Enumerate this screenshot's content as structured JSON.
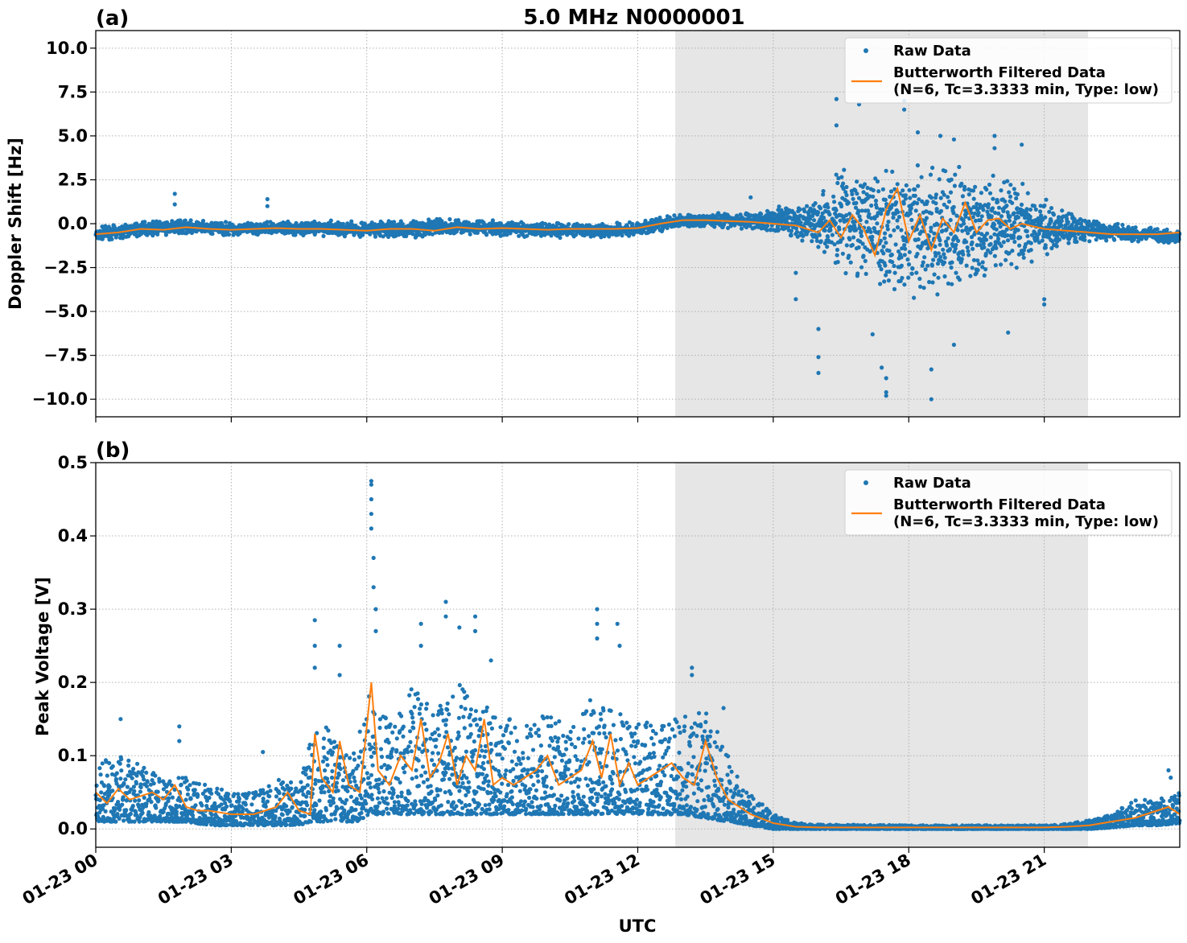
{
  "figure": {
    "title": "5.0 MHz N0000001"
  },
  "chart_data": [
    {
      "type": "scatter",
      "panel_label": "(a)",
      "title": "5.0 MHz N0000001",
      "xlabel": "",
      "ylabel": "Doppler Shift [Hz]",
      "xlim": [
        "01-23 00:00",
        "01-23 24:00"
      ],
      "ylim": [
        -11,
        11
      ],
      "x_ticks": [
        "01-23 00",
        "01-23 03",
        "01-23 06",
        "01-23 09",
        "01-23 12",
        "01-23 15",
        "01-23 18",
        "01-23 21"
      ],
      "y_ticks": [
        "−10.0",
        "−7.5",
        "−5.0",
        "−2.5",
        "0.0",
        "2.5",
        "5.0",
        "7.5",
        "10.0"
      ],
      "grid": true,
      "legend_position": "top-right",
      "shaded_interval_hours": [
        12.83,
        21.97
      ],
      "series": [
        {
          "name": "Raw Data",
          "color": "#1f77b4",
          "envelope_hours": [
            0,
            1,
            2,
            3,
            4,
            5,
            6,
            7,
            8,
            9,
            10,
            11,
            12,
            12.8,
            13.5,
            14.5,
            15,
            15.5,
            16,
            16.5,
            17,
            17.5,
            18,
            18.5,
            19,
            19.5,
            20,
            20.5,
            21,
            21.5,
            22,
            23,
            24
          ],
          "envelope_upper": [
            -0.2,
            0.1,
            0.2,
            0.1,
            0.1,
            0.2,
            0.1,
            0.2,
            0.3,
            0.2,
            0.1,
            0.0,
            0.1,
            0.5,
            0.6,
            0.6,
            0.9,
            1.2,
            2.0,
            3.0,
            3.5,
            3.8,
            3.5,
            3.5,
            3.3,
            3.0,
            2.8,
            2.3,
            1.5,
            0.6,
            0.3,
            -0.2,
            -0.3
          ],
          "envelope_lower": [
            -1.0,
            -0.7,
            -0.6,
            -0.7,
            -0.6,
            -0.7,
            -0.8,
            -0.8,
            -0.6,
            -0.7,
            -0.8,
            -0.8,
            -0.7,
            -0.3,
            -0.2,
            -0.3,
            -0.5,
            -0.8,
            -1.5,
            -3.0,
            -3.8,
            -4.0,
            -4.2,
            -4.3,
            -4.0,
            -3.5,
            -3.0,
            -2.5,
            -2.0,
            -1.2,
            -1.0,
            -1.0,
            -1.1
          ],
          "outliers": [
            [
              1.75,
              1.7
            ],
            [
              1.75,
              1.1
            ],
            [
              3.8,
              1.4
            ],
            [
              3.8,
              1.0
            ],
            [
              14.5,
              1.5
            ],
            [
              15.5,
              -2.8
            ],
            [
              15.5,
              -4.3
            ],
            [
              16.0,
              -6.0
            ],
            [
              16.0,
              -7.6
            ],
            [
              16.0,
              -8.5
            ],
            [
              16.4,
              7.1
            ],
            [
              16.4,
              5.6
            ],
            [
              16.9,
              6.8
            ],
            [
              17.2,
              -6.3
            ],
            [
              17.4,
              -8.2
            ],
            [
              17.5,
              -8.8
            ],
            [
              17.5,
              -9.6
            ],
            [
              17.5,
              -9.8
            ],
            [
              17.9,
              7.0
            ],
            [
              17.9,
              6.5
            ],
            [
              18.2,
              5.2
            ],
            [
              18.5,
              -10.0
            ],
            [
              18.5,
              -8.3
            ],
            [
              18.7,
              5.0
            ],
            [
              19.0,
              4.8
            ],
            [
              19.0,
              -6.9
            ],
            [
              19.9,
              5.0
            ],
            [
              19.9,
              4.3
            ],
            [
              20.2,
              -6.2
            ],
            [
              20.5,
              4.5
            ],
            [
              21.0,
              -4.3
            ],
            [
              21.0,
              -4.6
            ]
          ]
        },
        {
          "name": "Butterworth Filtered Data\n(N=6, Tc=3.3333 min, Type: low)",
          "color": "#ff7f0e",
          "x_hours": [
            0,
            0.5,
            1,
            1.5,
            2,
            2.5,
            3,
            3.5,
            4,
            4.5,
            5,
            5.5,
            6,
            6.5,
            7,
            7.5,
            8,
            8.5,
            9,
            9.5,
            10,
            10.5,
            11,
            11.5,
            12,
            12.5,
            13,
            13.5,
            14,
            14.5,
            15,
            15.5,
            16,
            16.25,
            16.5,
            16.75,
            17,
            17.25,
            17.5,
            17.75,
            18,
            18.25,
            18.5,
            18.75,
            19,
            19.25,
            19.5,
            19.75,
            20,
            20.25,
            20.5,
            21,
            21.5,
            22,
            22.5,
            23,
            23.5,
            24
          ],
          "y": [
            -0.6,
            -0.5,
            -0.3,
            -0.35,
            -0.2,
            -0.3,
            -0.35,
            -0.3,
            -0.25,
            -0.3,
            -0.3,
            -0.35,
            -0.4,
            -0.3,
            -0.3,
            -0.4,
            -0.2,
            -0.3,
            -0.25,
            -0.3,
            -0.35,
            -0.3,
            -0.3,
            -0.3,
            -0.25,
            0.0,
            0.2,
            0.2,
            0.15,
            0.1,
            0.0,
            -0.1,
            -0.5,
            0.2,
            -0.8,
            0.5,
            -0.3,
            -1.8,
            0.8,
            2.0,
            -1.0,
            0.5,
            -1.5,
            0.3,
            -0.5,
            1.2,
            -0.5,
            0.2,
            0.3,
            -0.3,
            0.0,
            -0.3,
            -0.4,
            -0.5,
            -0.6,
            -0.6,
            -0.6,
            -0.5
          ]
        }
      ],
      "legend": {
        "raw_label": "Raw Data",
        "filtered_label_line1": "Butterworth Filtered Data",
        "filtered_label_line2": "(N=6, Tc=3.3333 min, Type: low)"
      }
    },
    {
      "type": "scatter",
      "panel_label": "(b)",
      "title": "",
      "xlabel": "UTC",
      "ylabel": "Peak Voltage [V]",
      "xlim": [
        "01-23 00:00",
        "01-23 24:00"
      ],
      "ylim": [
        -0.025,
        0.5
      ],
      "x_ticks": [
        "01-23 00",
        "01-23 03",
        "01-23 06",
        "01-23 09",
        "01-23 12",
        "01-23 15",
        "01-23 18",
        "01-23 21"
      ],
      "y_ticks": [
        "0.0",
        "0.1",
        "0.2",
        "0.3",
        "0.4",
        "0.5"
      ],
      "grid": true,
      "legend_position": "top-right",
      "shaded_interval_hours": [
        12.83,
        21.97
      ],
      "series": [
        {
          "name": "Raw Data",
          "color": "#1f77b4",
          "envelope_hours": [
            0,
            0.5,
            1,
            1.5,
            2,
            2.5,
            3,
            3.5,
            4,
            4.5,
            4.8,
            5.2,
            5.5,
            5.8,
            6.05,
            6.2,
            6.5,
            7,
            7.5,
            8,
            8.5,
            9,
            9.5,
            10,
            10.5,
            11,
            11.5,
            12,
            12.5,
            13,
            13.5,
            14,
            14.5,
            15,
            15.5,
            16,
            18,
            20,
            21,
            21.5,
            22,
            22.5,
            23,
            23.5,
            24
          ],
          "envelope_upper": [
            0.09,
            0.1,
            0.09,
            0.07,
            0.07,
            0.06,
            0.05,
            0.05,
            0.07,
            0.06,
            0.13,
            0.15,
            0.1,
            0.12,
            0.2,
            0.16,
            0.15,
            0.2,
            0.16,
            0.2,
            0.17,
            0.16,
            0.14,
            0.16,
            0.14,
            0.18,
            0.16,
            0.15,
            0.14,
            0.16,
            0.16,
            0.11,
            0.05,
            0.02,
            0.008,
            0.006,
            0.005,
            0.005,
            0.005,
            0.007,
            0.012,
            0.02,
            0.04,
            0.04,
            0.05
          ],
          "envelope_lower": [
            0.01,
            0.01,
            0.01,
            0.01,
            0.01,
            0.005,
            0.005,
            0.005,
            0.005,
            0.005,
            0.01,
            0.01,
            0.01,
            0.01,
            0.02,
            0.02,
            0.02,
            0.02,
            0.02,
            0.02,
            0.02,
            0.02,
            0.02,
            0.02,
            0.02,
            0.02,
            0.02,
            0.02,
            0.02,
            0.02,
            0.015,
            0.01,
            0.005,
            0.0,
            0.0,
            0.0,
            0.0,
            0.0,
            0.0,
            0.0,
            0.0,
            0.002,
            0.005,
            0.005,
            0.008
          ],
          "outliers": [
            [
              0.55,
              0.15
            ],
            [
              1.85,
              0.14
            ],
            [
              1.85,
              0.12
            ],
            [
              3.7,
              0.105
            ],
            [
              4.85,
              0.285
            ],
            [
              4.85,
              0.25
            ],
            [
              4.85,
              0.22
            ],
            [
              5.4,
              0.25
            ],
            [
              5.4,
              0.21
            ],
            [
              6.1,
              0.475
            ],
            [
              6.1,
              0.47
            ],
            [
              6.1,
              0.45
            ],
            [
              6.1,
              0.43
            ],
            [
              6.1,
              0.41
            ],
            [
              6.15,
              0.37
            ],
            [
              6.15,
              0.33
            ],
            [
              6.2,
              0.3
            ],
            [
              6.2,
              0.27
            ],
            [
              7.2,
              0.28
            ],
            [
              7.2,
              0.25
            ],
            [
              7.75,
              0.31
            ],
            [
              7.75,
              0.29
            ],
            [
              8.05,
              0.275
            ],
            [
              8.4,
              0.29
            ],
            [
              8.4,
              0.27
            ],
            [
              8.75,
              0.23
            ],
            [
              11.1,
              0.3
            ],
            [
              11.1,
              0.28
            ],
            [
              11.1,
              0.26
            ],
            [
              11.55,
              0.28
            ],
            [
              11.6,
              0.25
            ],
            [
              13.2,
              0.22
            ],
            [
              13.2,
              0.21
            ],
            [
              13.9,
              0.165
            ],
            [
              23.75,
              0.08
            ],
            [
              23.8,
              0.07
            ]
          ]
        },
        {
          "name": "Butterworth Filtered Data\n(N=6, Tc=3.3333 min, Type: low)",
          "color": "#ff7f0e",
          "x_hours": [
            0,
            0.25,
            0.5,
            0.75,
            1,
            1.25,
            1.5,
            1.75,
            2,
            2.25,
            2.5,
            3,
            3.5,
            4,
            4.25,
            4.5,
            4.75,
            4.85,
            5,
            5.25,
            5.4,
            5.6,
            5.85,
            6.1,
            6.25,
            6.5,
            6.75,
            7,
            7.2,
            7.4,
            7.6,
            7.8,
            8,
            8.2,
            8.4,
            8.6,
            8.8,
            9,
            9.25,
            9.5,
            9.75,
            10,
            10.25,
            10.5,
            10.75,
            11,
            11.2,
            11.4,
            11.6,
            11.8,
            12,
            12.25,
            12.5,
            12.75,
            13,
            13.25,
            13.5,
            13.75,
            14,
            14.5,
            15,
            15.5,
            16,
            18,
            20,
            21,
            21.5,
            22,
            22.5,
            23,
            23.5,
            23.75,
            24
          ],
          "y": [
            0.05,
            0.035,
            0.055,
            0.04,
            0.045,
            0.05,
            0.04,
            0.06,
            0.03,
            0.025,
            0.025,
            0.02,
            0.02,
            0.03,
            0.05,
            0.025,
            0.02,
            0.13,
            0.07,
            0.05,
            0.12,
            0.06,
            0.05,
            0.2,
            0.08,
            0.06,
            0.1,
            0.08,
            0.15,
            0.07,
            0.09,
            0.13,
            0.06,
            0.1,
            0.08,
            0.15,
            0.06,
            0.07,
            0.06,
            0.07,
            0.08,
            0.1,
            0.06,
            0.07,
            0.08,
            0.12,
            0.07,
            0.13,
            0.06,
            0.09,
            0.06,
            0.07,
            0.08,
            0.09,
            0.07,
            0.06,
            0.12,
            0.07,
            0.04,
            0.02,
            0.008,
            0.003,
            0.002,
            0.002,
            0.002,
            0.002,
            0.003,
            0.005,
            0.01,
            0.015,
            0.025,
            0.03,
            0.02
          ]
        }
      ],
      "legend": {
        "raw_label": "Raw Data",
        "filtered_label_line1": "Butterworth Filtered Data",
        "filtered_label_line2": "(N=6, Tc=3.3333 min, Type: low)"
      }
    }
  ]
}
